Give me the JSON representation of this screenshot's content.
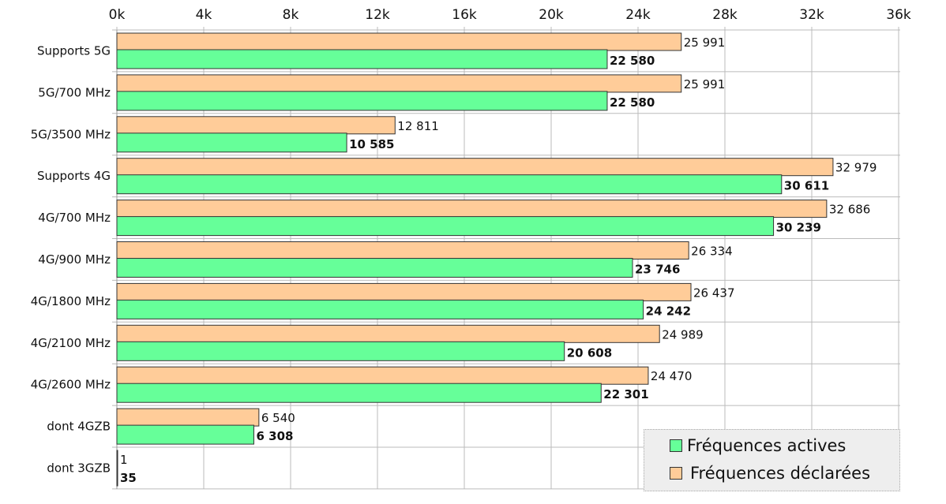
{
  "chart_data": {
    "type": "bar",
    "orientation": "horizontal",
    "categories": [
      "Supports 5G",
      "5G/700 MHz",
      "5G/3500 MHz",
      "Supports 4G",
      "4G/700 MHz",
      "4G/900 MHz",
      "4G/1800 MHz",
      "4G/2100 MHz",
      "4G/2600 MHz",
      "dont 4GZB",
      "dont 3GZB"
    ],
    "series": [
      {
        "name": "Fréquences déclarées",
        "color": "#ffcc99",
        "values": [
          25991,
          25991,
          12811,
          32979,
          32686,
          26334,
          26437,
          24989,
          24470,
          6540,
          1
        ],
        "labels": [
          "25 991",
          "25 991",
          "12 811",
          "32 979",
          "32 686",
          "26 334",
          "26 437",
          "24 989",
          "24 470",
          "6 540",
          "1"
        ]
      },
      {
        "name": "Fréquences actives",
        "color": "#66ff99",
        "values": [
          22580,
          22580,
          10585,
          30611,
          30239,
          23746,
          24242,
          20608,
          22301,
          6308,
          35
        ],
        "labels": [
          "22 580",
          "22 580",
          "10 585",
          "30 611",
          "30 239",
          "23 746",
          "24 242",
          "20 608",
          "22 301",
          "6 308",
          "35"
        ]
      }
    ],
    "xticks": [
      "0k",
      "4k",
      "8k",
      "12k",
      "16k",
      "20k",
      "24k",
      "28k",
      "32k",
      "36k"
    ],
    "xlim": [
      0,
      36000
    ],
    "grid": true,
    "legend_position": "bottom-right",
    "legend": [
      "Fréquences actives",
      "Fréquences déclarées"
    ]
  }
}
